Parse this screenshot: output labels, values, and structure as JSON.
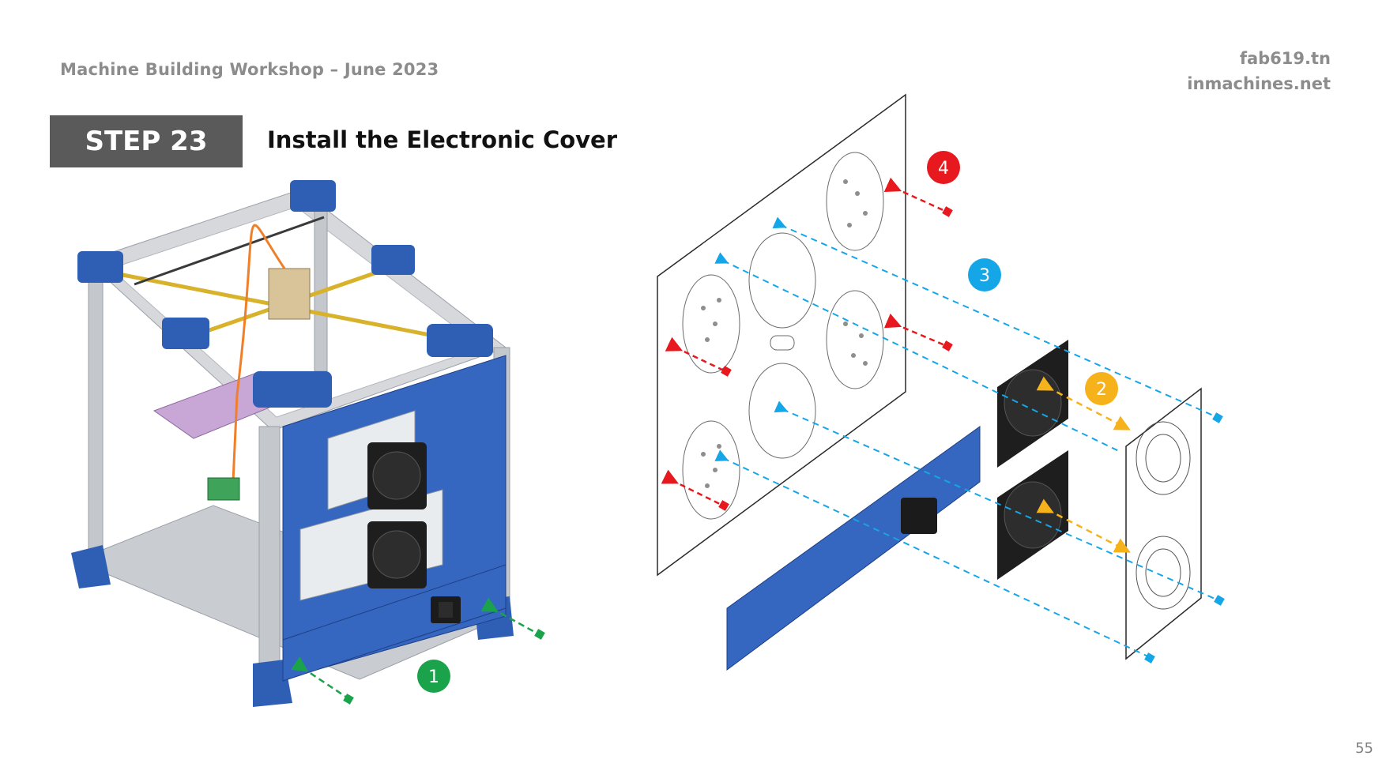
{
  "header": {
    "workshop": "Machine Building Workshop – June 2023",
    "site_line1": "fab619.tn",
    "site_line2": "inmachines.net"
  },
  "step": {
    "label": "STEP 23",
    "title": "Install the Electronic Cover"
  },
  "callouts": [
    {
      "number": "1",
      "color": "#1aa34a"
    },
    {
      "number": "2",
      "color": "#f5b21b"
    },
    {
      "number": "3",
      "color": "#15a6e8"
    },
    {
      "number": "4",
      "color": "#e8191e"
    }
  ],
  "colors": {
    "frame_blue": "#2f5fb5",
    "panel_blue": "#3566c0",
    "aluminium": "#c9ccd1",
    "fan_black": "#1e1e1e"
  },
  "footer": {
    "page_number": "55"
  }
}
